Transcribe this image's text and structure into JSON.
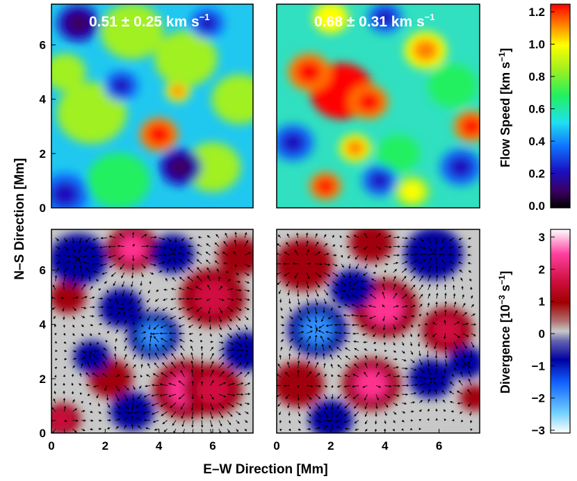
{
  "chart_data": [
    {
      "type": "heatmap",
      "panel": "top-left",
      "annotation": "0.51 ± 0.25 km s",
      "annotation_exp": "−1",
      "xlim": [
        0,
        7.5
      ],
      "ylim": [
        0,
        7.5
      ],
      "xticks": [
        "0",
        "2",
        "4",
        "6"
      ],
      "yticks": [
        "0",
        "2",
        "4",
        "6"
      ],
      "mean": 0.51,
      "std": 0.25,
      "features": [
        {
          "x": 4.0,
          "y": 2.7,
          "v": 1.15,
          "r": 0.55
        },
        {
          "x": 4.7,
          "y": 4.3,
          "v": 1.05,
          "r": 0.35
        },
        {
          "x": 5.0,
          "y": 5.5,
          "v": 0.75,
          "r": 0.9
        },
        {
          "x": 1.5,
          "y": 3.5,
          "v": 0.7,
          "r": 1.0
        },
        {
          "x": 7.0,
          "y": 4.0,
          "v": 0.8,
          "r": 0.8
        },
        {
          "x": 3.0,
          "y": 6.5,
          "v": 0.7,
          "r": 0.9
        },
        {
          "x": 2.5,
          "y": 1.0,
          "v": 0.65,
          "r": 0.9
        },
        {
          "x": 6.0,
          "y": 1.5,
          "v": 0.7,
          "r": 0.8
        },
        {
          "x": 0.5,
          "y": 5.0,
          "v": 0.75,
          "r": 0.6
        },
        {
          "x": 1.0,
          "y": 6.8,
          "v": 0.1,
          "r": 0.6
        },
        {
          "x": 4.8,
          "y": 1.5,
          "v": 0.1,
          "r": 0.6
        },
        {
          "x": 0.5,
          "y": 0.5,
          "v": 0.15,
          "r": 0.7
        },
        {
          "x": 5.8,
          "y": 6.8,
          "v": 0.2,
          "r": 0.5
        },
        {
          "x": 2.6,
          "y": 4.5,
          "v": 0.15,
          "r": 0.5
        }
      ]
    },
    {
      "type": "heatmap",
      "panel": "top-right",
      "annotation": "0.68 ± 0.31 km s",
      "annotation_exp": "−1",
      "xlim": [
        0,
        7.5
      ],
      "ylim": [
        0,
        7.5
      ],
      "xticks": [],
      "yticks": [],
      "mean": 0.68,
      "std": 0.31,
      "features": [
        {
          "x": 2.4,
          "y": 4.3,
          "v": 1.25,
          "r": 0.9
        },
        {
          "x": 1.2,
          "y": 5.0,
          "v": 1.2,
          "r": 0.6
        },
        {
          "x": 3.4,
          "y": 3.9,
          "v": 1.15,
          "r": 0.55
        },
        {
          "x": 7.2,
          "y": 3.0,
          "v": 1.15,
          "r": 0.5
        },
        {
          "x": 1.8,
          "y": 0.8,
          "v": 1.15,
          "r": 0.45
        },
        {
          "x": 2.9,
          "y": 2.2,
          "v": 1.0,
          "r": 0.45
        },
        {
          "x": 2.0,
          "y": 7.0,
          "v": 0.95,
          "r": 0.5
        },
        {
          "x": 5.5,
          "y": 5.8,
          "v": 1.0,
          "r": 0.6
        },
        {
          "x": 5.0,
          "y": 0.6,
          "v": 0.85,
          "r": 0.5
        },
        {
          "x": 6.5,
          "y": 4.5,
          "v": 0.55,
          "r": 0.7
        },
        {
          "x": 4.5,
          "y": 2.0,
          "v": 0.6,
          "r": 0.6
        },
        {
          "x": 0.6,
          "y": 2.4,
          "v": 0.15,
          "r": 0.6
        },
        {
          "x": 4.0,
          "y": 7.0,
          "v": 0.15,
          "r": 0.5
        },
        {
          "x": 3.8,
          "y": 1.0,
          "v": 0.2,
          "r": 0.5
        },
        {
          "x": 6.8,
          "y": 1.5,
          "v": 0.2,
          "r": 0.6
        }
      ]
    },
    {
      "type": "heatmap",
      "panel": "bottom-left",
      "xlim": [
        0,
        7.5
      ],
      "ylim": [
        0,
        7.5
      ],
      "xticks": [
        "0",
        "2",
        "4",
        "6"
      ],
      "yticks": [
        "0",
        "2",
        "4",
        "6"
      ],
      "vectors": true,
      "features": [
        {
          "x": 3.0,
          "y": 6.8,
          "v": 2.2,
          "r": 0.7
        },
        {
          "x": 6.0,
          "y": 5.0,
          "v": 2.0,
          "r": 0.9
        },
        {
          "x": 5.0,
          "y": 1.6,
          "v": 2.3,
          "r": 0.9
        },
        {
          "x": 6.0,
          "y": 1.6,
          "v": 1.8,
          "r": 0.8
        },
        {
          "x": 2.2,
          "y": 2.0,
          "v": 1.5,
          "r": 0.6
        },
        {
          "x": 0.6,
          "y": 5.0,
          "v": 1.2,
          "r": 0.5
        },
        {
          "x": 0.4,
          "y": 0.5,
          "v": 1.6,
          "r": 0.5
        },
        {
          "x": 7.0,
          "y": 6.5,
          "v": 1.2,
          "r": 0.6
        },
        {
          "x": 3.8,
          "y": 3.6,
          "v": -2.2,
          "r": 0.7
        },
        {
          "x": 1.0,
          "y": 6.4,
          "v": -1.3,
          "r": 0.8
        },
        {
          "x": 4.5,
          "y": 6.6,
          "v": -1.2,
          "r": 0.6
        },
        {
          "x": 2.6,
          "y": 4.6,
          "v": -1.0,
          "r": 0.6
        },
        {
          "x": 1.5,
          "y": 2.8,
          "v": -1.2,
          "r": 0.5
        },
        {
          "x": 3.0,
          "y": 0.8,
          "v": -1.2,
          "r": 0.6
        },
        {
          "x": 7.2,
          "y": 3.0,
          "v": -1.3,
          "r": 0.6
        }
      ]
    },
    {
      "type": "heatmap",
      "panel": "bottom-right",
      "xlim": [
        0,
        7.5
      ],
      "ylim": [
        0,
        7.5
      ],
      "xticks": [
        "0",
        "2",
        "4",
        "6"
      ],
      "yticks": [],
      "vectors": true,
      "features": [
        {
          "x": 4.0,
          "y": 4.6,
          "v": 2.2,
          "r": 0.9
        },
        {
          "x": 3.5,
          "y": 1.8,
          "v": 2.6,
          "r": 0.8
        },
        {
          "x": 6.3,
          "y": 3.8,
          "v": 1.9,
          "r": 0.7
        },
        {
          "x": 1.0,
          "y": 6.2,
          "v": 1.3,
          "r": 0.8
        },
        {
          "x": 3.5,
          "y": 7.0,
          "v": 1.2,
          "r": 0.6
        },
        {
          "x": 0.8,
          "y": 1.8,
          "v": 1.2,
          "r": 0.7
        },
        {
          "x": 7.3,
          "y": 1.3,
          "v": 1.4,
          "r": 0.4
        },
        {
          "x": 1.5,
          "y": 3.8,
          "v": -2.5,
          "r": 0.8
        },
        {
          "x": 5.8,
          "y": 6.6,
          "v": -1.3,
          "r": 0.8
        },
        {
          "x": 5.7,
          "y": 2.0,
          "v": -1.2,
          "r": 0.6
        },
        {
          "x": 2.8,
          "y": 5.3,
          "v": -1.0,
          "r": 0.6
        },
        {
          "x": 2.0,
          "y": 0.5,
          "v": -1.2,
          "r": 0.6
        },
        {
          "x": 7.0,
          "y": 2.6,
          "v": -1.0,
          "r": 0.5
        }
      ]
    }
  ],
  "labels": {
    "y_axis": "N–S Direction   [Mm]",
    "x_axis": "E–W Direction   [Mm]"
  },
  "colorbars": [
    {
      "name": "flow-speed",
      "label": "Flow Speed   [km s",
      "label_exp": "−1",
      "label_end": "]",
      "range": [
        0.0,
        1.2
      ],
      "ticks": [
        "0.0",
        "0.2",
        "0.4",
        "0.6",
        "0.8",
        "1.0",
        "1.2"
      ],
      "colormap": "rainbow"
    },
    {
      "name": "divergence",
      "label": "Divergence   [10",
      "label_exp1": "−3",
      "label_mid": " s",
      "label_exp2": "−1",
      "label_end": "]",
      "range": [
        -3,
        3
      ],
      "ticks": [
        "−3",
        "−2",
        "−1",
        "0",
        "1",
        "2",
        "3"
      ],
      "colormap": "diverging-blue-red"
    }
  ]
}
